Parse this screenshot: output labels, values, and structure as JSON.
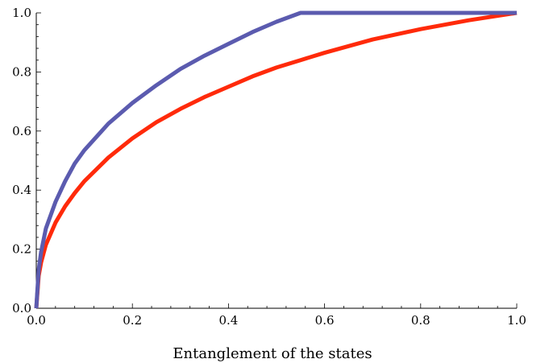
{
  "chart_data": {
    "type": "line",
    "title": "",
    "xlabel": "Entanglement of the states",
    "ylabel": "",
    "xlim": [
      0.0,
      1.0
    ],
    "ylim": [
      0.0,
      1.0
    ],
    "grid": false,
    "x_ticks": [
      "0.0",
      "0.2",
      "0.4",
      "0.6",
      "0.8",
      "1.0"
    ],
    "y_ticks": [
      "0.0",
      "0.2",
      "0.4",
      "0.6",
      "0.8",
      "1.0"
    ],
    "series": [
      {
        "color": "#5b5baf",
        "x": [
          0,
          0.005,
          0.01,
          0.02,
          0.04,
          0.06,
          0.08,
          0.1,
          0.15,
          0.2,
          0.25,
          0.3,
          0.35,
          0.4,
          0.45,
          0.5,
          0.55,
          0.6,
          0.7,
          0.8,
          0.9,
          1.0
        ],
        "y": [
          0,
          0.13,
          0.19,
          0.27,
          0.36,
          0.43,
          0.49,
          0.535,
          0.625,
          0.695,
          0.755,
          0.81,
          0.855,
          0.895,
          0.935,
          0.97,
          1.0,
          1.0,
          1.0,
          1.0,
          1.0,
          1.0
        ]
      },
      {
        "color": "#ff2a0a",
        "x": [
          0,
          0.005,
          0.01,
          0.02,
          0.04,
          0.06,
          0.08,
          0.1,
          0.15,
          0.2,
          0.25,
          0.3,
          0.35,
          0.4,
          0.45,
          0.5,
          0.55,
          0.6,
          0.7,
          0.8,
          0.9,
          1.0
        ],
        "y": [
          0,
          0.11,
          0.155,
          0.215,
          0.29,
          0.345,
          0.39,
          0.43,
          0.51,
          0.575,
          0.63,
          0.675,
          0.715,
          0.75,
          0.785,
          0.815,
          0.84,
          0.865,
          0.91,
          0.945,
          0.975,
          1.0
        ]
      }
    ]
  }
}
